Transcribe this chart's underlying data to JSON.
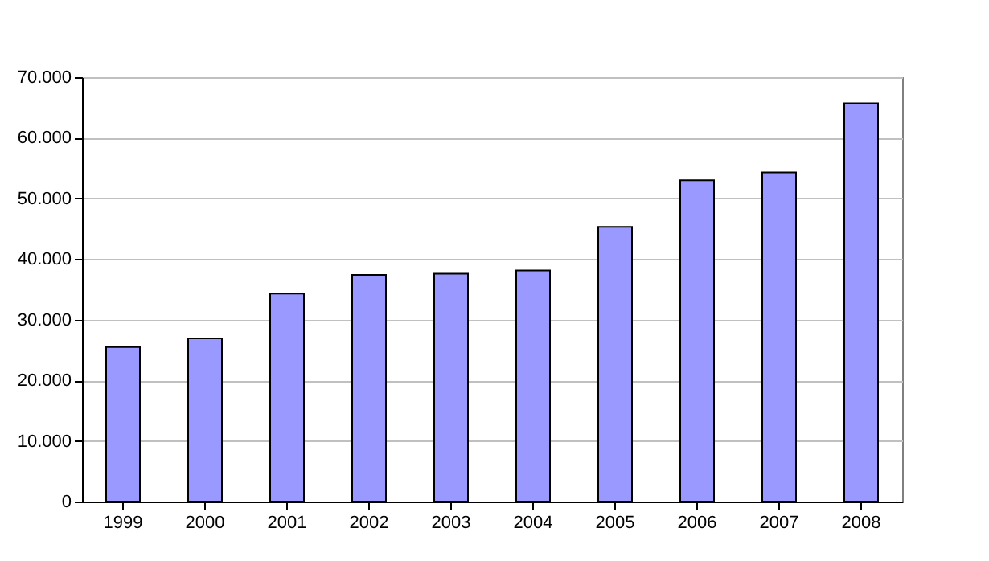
{
  "chart_data": {
    "type": "bar",
    "categories": [
      "1999",
      "2000",
      "2001",
      "2002",
      "2003",
      "2004",
      "2005",
      "2006",
      "2007",
      "2008"
    ],
    "values": [
      25500,
      26900,
      34300,
      37400,
      37600,
      38100,
      45300,
      53000,
      54300,
      65700
    ],
    "color": "#9999ff",
    "ylim": [
      0,
      70000
    ],
    "yticks": [
      {
        "value": 0,
        "label": "0"
      },
      {
        "value": 10000,
        "label": "10.000"
      },
      {
        "value": 20000,
        "label": "20.000"
      },
      {
        "value": 30000,
        "label": "30.000"
      },
      {
        "value": 40000,
        "label": "40.000"
      },
      {
        "value": 50000,
        "label": "50.000"
      },
      {
        "value": 60000,
        "label": "60.000"
      },
      {
        "value": 70000,
        "label": "70.000"
      }
    ],
    "grid": "y"
  }
}
